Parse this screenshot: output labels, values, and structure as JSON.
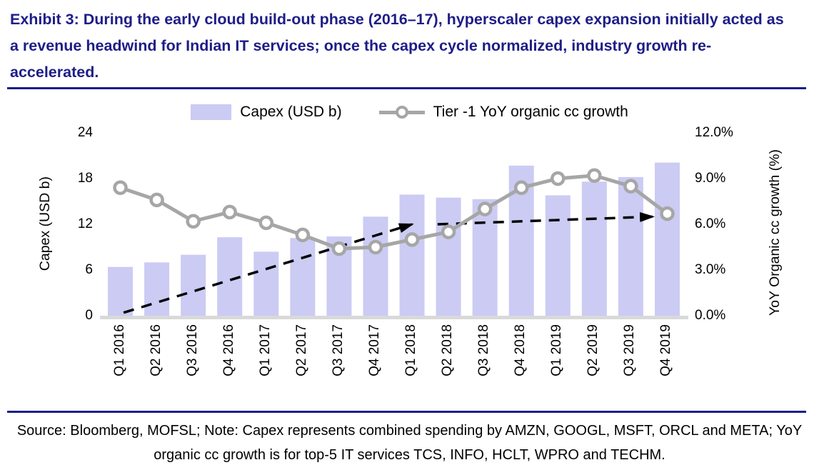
{
  "title": "Exhibit 3: During the early cloud build-out phase (2016–17), hyperscaler capex expansion initially acted as a revenue headwind for Indian IT services; once the capex cycle normalized, industry growth re-accelerated.",
  "legend": {
    "capex": "Capex (USD b)",
    "growth": "Tier -1 YoY organic cc growth"
  },
  "source": "Source: Bloomberg, MOFSL; Note: Capex represents combined spending by AMZN, GOOGL, MSFT, ORCL and META; YoY organic cc growth is for top-5 IT services TCS, INFO, HCLT, WPRO and TECHM.",
  "colors": {
    "bar": "#cbcbf4",
    "line": "#a6a6a6",
    "marker_fill": "#ffffff",
    "baseline": "#d9d9d9",
    "navy": "#1e1d87",
    "arrow": "#000000"
  },
  "chart_data": {
    "type": "bar",
    "subtype": "combo-bar-line-dual-axis",
    "categories": [
      "Q1 2016",
      "Q2 2016",
      "Q3 2016",
      "Q4 2016",
      "Q1 2017",
      "Q2 2017",
      "Q3 2017",
      "Q4 2017",
      "Q1 2018",
      "Q2 2018",
      "Q3 2018",
      "Q4 2018",
      "Q1 2019",
      "Q2 2019",
      "Q3 2019",
      "Q4 2019"
    ],
    "series": [
      {
        "name": "Capex (USD b)",
        "type": "bar",
        "axis": "left",
        "values": [
          6.4,
          7.0,
          8.0,
          10.3,
          8.4,
          10.2,
          10.4,
          13.0,
          15.9,
          15.5,
          15.3,
          19.7,
          15.8,
          17.6,
          18.2,
          20.1
        ]
      },
      {
        "name": "Tier -1 YoY organic cc growth",
        "type": "line",
        "axis": "right",
        "values": [
          8.4,
          7.6,
          6.2,
          6.8,
          6.1,
          5.3,
          4.4,
          4.5,
          5.0,
          5.5,
          7.0,
          8.4,
          9.0,
          9.2,
          8.5,
          6.7
        ]
      }
    ],
    "left_axis": {
      "label": "Capex (USD b)",
      "ticks": [
        0,
        6,
        12,
        18,
        24
      ],
      "range": [
        0,
        24
      ]
    },
    "right_axis": {
      "label": "YoY Organic cc growth (%)",
      "ticks": [
        "0.0%",
        "3.0%",
        "6.0%",
        "9.0%",
        "12.0%"
      ],
      "tick_values": [
        0,
        3,
        6,
        9,
        12
      ],
      "range": [
        0,
        12
      ]
    },
    "legend_position": "top",
    "grid": false,
    "annotations": {
      "style": "black-dashed-arrow",
      "arrows": [
        {
          "from": {
            "x": 0.09,
            "y": 0.2
          },
          "to": {
            "x": 8.0,
            "y": 6.0
          }
        },
        {
          "from": {
            "x": 8.7,
            "y": 6.0
          },
          "to": {
            "x": 14.6,
            "y": 6.5
          }
        }
      ]
    }
  }
}
